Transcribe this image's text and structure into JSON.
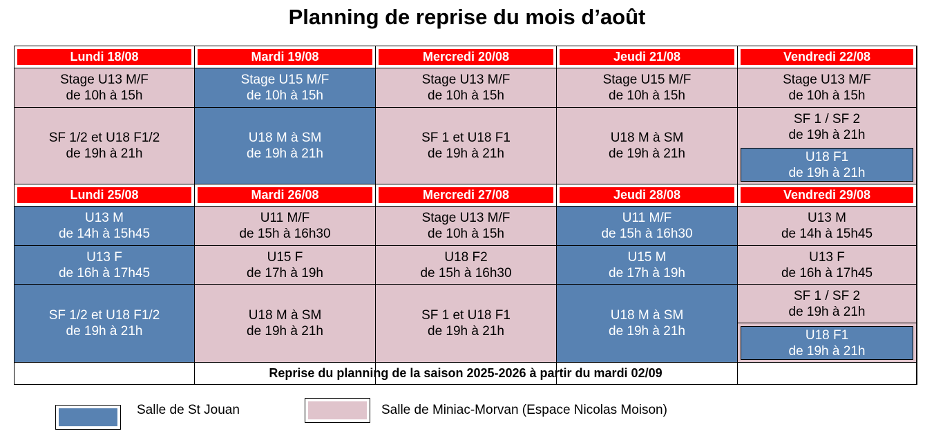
{
  "title": "Planning de reprise du mois d’août",
  "colors": {
    "header": "#ff0000",
    "st_jouan": "#5882b2",
    "miniac": "#e0c4cc"
  },
  "week1": [
    {
      "day": "Lundi 18/08",
      "slot1": {
        "line1": "Stage U13 M/F",
        "line2": "de 10h à 15h",
        "venue": "miniac"
      },
      "slot2": {
        "line1": "SF 1/2 et U18 F1/2",
        "line2": "de 19h à 21h",
        "venue": "miniac"
      }
    },
    {
      "day": "Mardi 19/08",
      "slot1": {
        "line1": "Stage U15 M/F",
        "line2": "de 10h à 15h",
        "venue": "st_jouan"
      },
      "slot2": {
        "line1": "U18 M à SM",
        "line2": "de 19h à 21h",
        "venue": "st_jouan"
      }
    },
    {
      "day": "Mercredi 20/08",
      "slot1": {
        "line1": "Stage U13 M/F",
        "line2": "de 10h à 15h",
        "venue": "miniac"
      },
      "slot2": {
        "line1": "SF 1 et U18 F1",
        "line2": "de 19h à 21h",
        "venue": "miniac"
      }
    },
    {
      "day": "Jeudi 21/08",
      "slot1": {
        "line1": "Stage U15 M/F",
        "line2": "de 10h à 15h",
        "venue": "miniac"
      },
      "slot2": {
        "line1": "U18 M à SM",
        "line2": "de 19h à 21h",
        "venue": "miniac"
      }
    },
    {
      "day": "Vendredi 22/08",
      "slot1": {
        "line1": "Stage U13 M/F",
        "line2": "de 10h à 15h",
        "venue": "miniac"
      },
      "slot2": {
        "line1": "SF 1 / SF 2",
        "line2": "de 19h à 21h",
        "venue": "miniac"
      },
      "slot3": {
        "line1": "U18 F1",
        "line2": "de 19h à 21h",
        "venue": "st_jouan"
      }
    }
  ],
  "week2": [
    {
      "day": "Lundi 25/08",
      "slot1": {
        "line1": "U13 M",
        "line2": "de 14h à 15h45",
        "venue": "st_jouan"
      },
      "slot2": {
        "line1": "U13 F",
        "line2": "de 16h à 17h45",
        "venue": "st_jouan"
      },
      "slot3": {
        "line1": "SF 1/2 et U18 F1/2",
        "line2": "de 19h à 21h",
        "venue": "st_jouan"
      }
    },
    {
      "day": "Mardi 26/08",
      "slot1": {
        "line1": "U11 M/F",
        "line2": "de 15h à 16h30",
        "venue": "miniac"
      },
      "slot2": {
        "line1": "U15 F",
        "line2": "de 17h à 19h",
        "venue": "miniac"
      },
      "slot3": {
        "line1": "U18 M à SM",
        "line2": "de 19h à 21h",
        "venue": "miniac"
      }
    },
    {
      "day": "Mercredi 27/08",
      "slot1": {
        "line1": "Stage U13 M/F",
        "line2": "de 10h à 15h",
        "venue": "miniac"
      },
      "slot2": {
        "line1": "U18 F2",
        "line2": "de 15h à 16h30",
        "venue": "miniac"
      },
      "slot3": {
        "line1": "SF 1 et U18 F1",
        "line2": "de 19h à 21h",
        "venue": "miniac"
      }
    },
    {
      "day": "Jeudi 28/08",
      "slot1": {
        "line1": "U11 M/F",
        "line2": "de 15h à 16h30",
        "venue": "st_jouan"
      },
      "slot2": {
        "line1": "U15 M",
        "line2": "de 17h à 19h",
        "venue": "st_jouan"
      },
      "slot3": {
        "line1": "U18 M à SM",
        "line2": "de 19h à 21h",
        "venue": "st_jouan"
      }
    },
    {
      "day": "Vendredi 29/08",
      "slot1": {
        "line1": "U13 M",
        "line2": "de 14h à 15h45",
        "venue": "miniac"
      },
      "slot2": {
        "line1": "U13 F",
        "line2": "de 16h à 17h45",
        "venue": "miniac"
      },
      "slot3": {
        "line1": "SF 1 / SF 2",
        "line2": "de 19h à 21h",
        "venue": "miniac"
      },
      "slot4": {
        "line1": "U18 F1",
        "line2": "de 19h à 21h",
        "venue": "st_jouan"
      }
    }
  ],
  "footer": "Reprise du planning de la saison 2025-2026 à partir du mardi 02/09",
  "legend": {
    "st_jouan": "Salle de St Jouan",
    "miniac": "Salle de Miniac-Morvan (Espace Nicolas Moison)"
  }
}
